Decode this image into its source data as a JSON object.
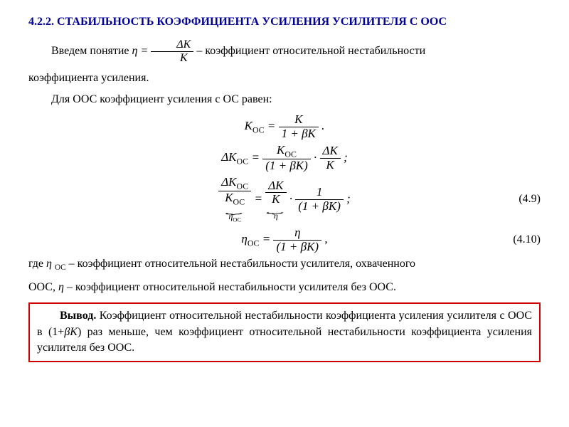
{
  "section": {
    "number": "4.2.2.",
    "title": "СТАБИЛЬНОСТЬ КОЭФФИЦИЕНТА УСИЛЕНИЯ УСИЛИТЕЛЯ С ООС"
  },
  "text": {
    "intro_prefix": "Введем   понятие   ",
    "intro_suffix": "   –  коэффициент  относительной  нестабильности",
    "intro_line2": "коэффициента усиления.",
    "line3": "Для ООС коэффициент усиления с ОС равен:",
    "where_prefix": "где ",
    "where_mid1": " – коэффициент относительной нестабильности усилителя, охваченного",
    "where_line2_prefix": "ООС, ",
    "where_line2_suffix": " – коэффициент относительной нестабильности усилителя без ООС.",
    "conclusion_label": "Вывод.",
    "conclusion_body": " Коэффициент относительной нестабильности коэффициента усиления усилителя с ООС в (1+",
    "conclusion_body2": ") раз меньше, чем коэффициент относительной нестабильности коэффициента усиления усилителя без ООС."
  },
  "symbols": {
    "eta": "η",
    "eta_oc": "η",
    "eta_oc_sub": "ОС",
    "K": "K",
    "Koc": "K",
    "Koc_sub": "ОС",
    "deltaK": "ΔK",
    "deltaKoc": "ΔK",
    "beta": "β",
    "betaK": "βK",
    "one_plus_bk": "(1 + βK)"
  },
  "eq_numbers": {
    "n49": "(4.9)",
    "n410": "(4.10)"
  },
  "colors": {
    "title_color": "#000099",
    "box_border": "#cc0000",
    "text_color": "#000000",
    "background": "#ffffff"
  }
}
